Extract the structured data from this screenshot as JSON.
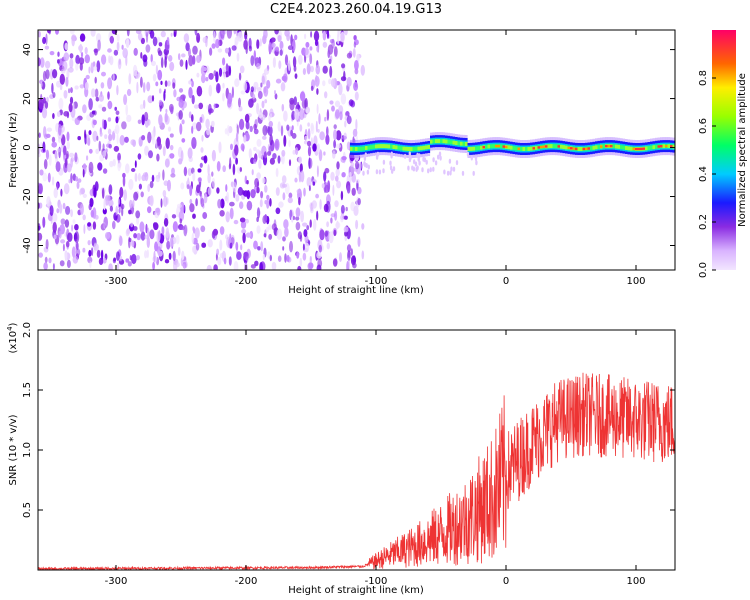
{
  "title": "C2E4.2023.260.04.19.G13",
  "chart_data": [
    {
      "type": "heatmap",
      "xlabel": "Height of straight line (km)",
      "ylabel": "Frequency (Hz)",
      "xlim": [
        -360,
        130
      ],
      "ylim": [
        -50,
        48
      ],
      "x_ticks": [
        -300,
        -200,
        -100,
        0,
        100
      ],
      "y_ticks": [
        -40,
        -20,
        0,
        20,
        40
      ],
      "colorbar": {
        "label": "Normalized spectral amplitude",
        "range": [
          0.0,
          1.0
        ],
        "ticks": [
          0.0,
          0.2,
          0.4,
          0.6,
          0.8
        ]
      },
      "regions": {
        "noise_x_range": [
          -360,
          -110
        ],
        "signal_x_range": [
          -120,
          130
        ],
        "signal_center_frequency_hz": 0
      }
    },
    {
      "type": "line",
      "xlabel": "Height of straight line (km)",
      "ylabel": "SNR (10 * v/v)",
      "y_exponent_label": "(x10",
      "y_exponent_power": "4",
      "xlim": [
        -360,
        130
      ],
      "ylim": [
        0,
        2.0
      ],
      "x_ticks": [
        -300,
        -200,
        -100,
        0,
        100
      ],
      "y_ticks": [
        0.5,
        1.0,
        1.5,
        2.0
      ],
      "series_color": "#ee3333",
      "trend": {
        "x": [
          -360,
          -150,
          -110,
          -90,
          -70,
          -50,
          -30,
          -10,
          0,
          20,
          40,
          60,
          80,
          100,
          130
        ],
        "y": [
          0.01,
          0.02,
          0.03,
          0.12,
          0.2,
          0.3,
          0.42,
          0.6,
          0.8,
          1.05,
          1.25,
          1.3,
          1.28,
          1.25,
          1.22
        ]
      }
    }
  ]
}
